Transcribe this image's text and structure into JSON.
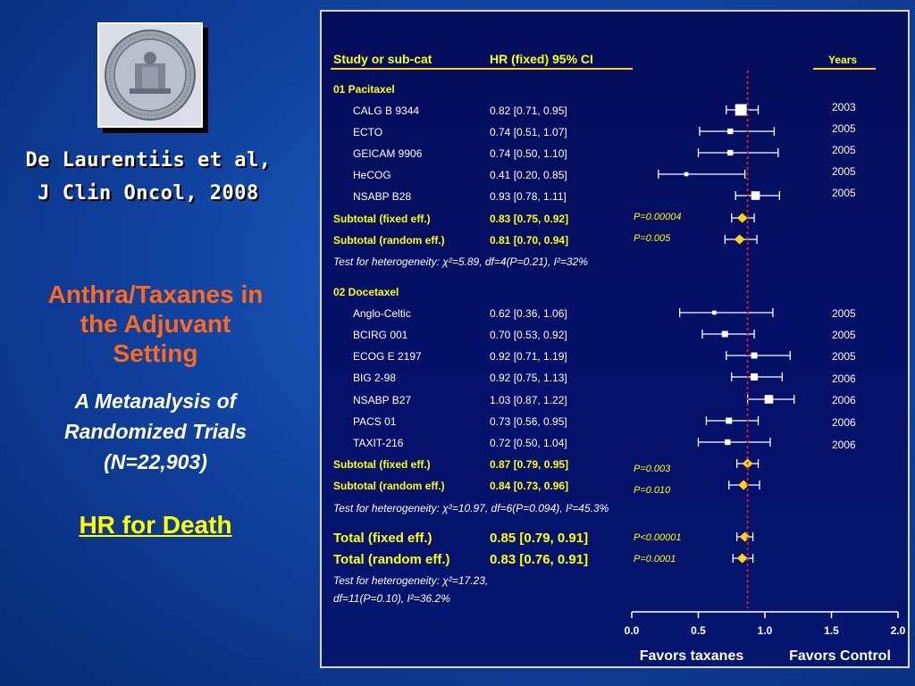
{
  "citation": {
    "line1": "De Laurentiis et al,",
    "line2": "J Clin Oncol, 2008"
  },
  "left_panel": {
    "title_lines": [
      "Anthra/Taxanes in",
      "the Adjuvant",
      "Setting"
    ],
    "subtitle_lines": [
      "A Metanalysis of",
      "Randomized Trials",
      "(N=22,903)"
    ],
    "hr_label": "HR for Death"
  },
  "table": {
    "col_study": "Study or sub-cat",
    "col_hr": "HR (fixed) 95% CI",
    "col_years": "Years"
  },
  "colors": {
    "panel_bg": "#04106a",
    "text_white": "#ffffff",
    "text_yellow": "#ffff00",
    "title_orange": "#ff6a1a",
    "diamond": "#ffd21a",
    "ref_line": "#d42020",
    "pval_yellow": "#ffff00"
  },
  "chart_data": {
    "type": "forest",
    "xlim": [
      0.0,
      2.0
    ],
    "xticks": [
      "0.0",
      "0.5",
      "1.0",
      "1.5",
      "2.0"
    ],
    "reference_line": 0.87,
    "x_label_left": "Favors taxanes",
    "x_label_right": "Favors Control",
    "groups": [
      {
        "name": "01 Pacitaxel",
        "studies": [
          {
            "name": "CALG B 9344",
            "hr_text": "0.82 [0.71,  0.95]",
            "hr": 0.82,
            "lo": 0.71,
            "hi": 0.95,
            "year": "2003",
            "weight": 3
          },
          {
            "name": "ECTO",
            "hr_text": "0.74 [0.51,  1.07]",
            "hr": 0.74,
            "lo": 0.51,
            "hi": 1.07,
            "year": "2005",
            "weight": 1
          },
          {
            "name": "GEICAM 9906",
            "hr_text": "0.74 [0.50,  1.10]",
            "hr": 0.74,
            "lo": 0.5,
            "hi": 1.1,
            "year": "2005",
            "weight": 1
          },
          {
            "name": "HeCOG",
            "hr_text": "0.41 [0.20,  0.85]",
            "hr": 0.41,
            "lo": 0.2,
            "hi": 0.85,
            "year": "2005",
            "weight": 0.5
          },
          {
            "name": "NSABP B28",
            "hr_text": "0.93 [0.78,  1.11]",
            "hr": 0.93,
            "lo": 0.78,
            "hi": 1.11,
            "year": "2005",
            "weight": 2
          }
        ],
        "subtotals": [
          {
            "label": "Subtotal (fixed eff.)",
            "hr_text": "0.83 [0.75,  0.92]",
            "hr": 0.83,
            "lo": 0.75,
            "hi": 0.92,
            "p": "P=0.00004"
          },
          {
            "label": "Subtotal (random eff.)",
            "hr_text": "0.81 [0.70,  0.94]",
            "hr": 0.81,
            "lo": 0.7,
            "hi": 0.94,
            "p": "P=0.005"
          }
        ],
        "heterogeneity": "Test for heterogeneity: χ²=5.89, df=4(P=0.21), I²=32%"
      },
      {
        "name": "02 Docetaxel",
        "studies": [
          {
            "name": "Anglo-Celtic",
            "hr_text": "0.62 [0.36,  1.06]",
            "hr": 0.62,
            "lo": 0.36,
            "hi": 1.06,
            "year": "2005",
            "weight": 0.5
          },
          {
            "name": "BCIRG 001",
            "hr_text": "0.70 [0.53,  0.92]",
            "hr": 0.7,
            "lo": 0.53,
            "hi": 0.92,
            "year": "2005",
            "weight": 1.2
          },
          {
            "name": "ECOG E 2197",
            "hr_text": "0.92 [0.71,  1.19]",
            "hr": 0.92,
            "lo": 0.71,
            "hi": 1.19,
            "year": "2005",
            "weight": 1.2
          },
          {
            "name": "BIG 2-98",
            "hr_text": "0.92 [0.75,  1.13]",
            "hr": 0.92,
            "lo": 0.75,
            "hi": 1.13,
            "year": "2006",
            "weight": 1.5
          },
          {
            "name": "NSABP B27",
            "hr_text": "1.03 [0.87,  1.22]",
            "hr": 1.03,
            "lo": 0.87,
            "hi": 1.22,
            "year": "2006",
            "weight": 2
          },
          {
            "name": "PACS 01",
            "hr_text": "0.73 [0.56,  0.95]",
            "hr": 0.73,
            "lo": 0.56,
            "hi": 0.95,
            "year": "2006",
            "weight": 1.2
          },
          {
            "name": "TAXIT-216",
            "hr_text": "0.72 [0.50,  1.04]",
            "hr": 0.72,
            "lo": 0.5,
            "hi": 1.04,
            "year": "2006",
            "weight": 1
          }
        ],
        "subtotals": [
          {
            "label": "Subtotal (fixed eff.)",
            "hr_text": "0.87 [0.79,  0.95]",
            "hr": 0.87,
            "lo": 0.79,
            "hi": 0.95,
            "p": "P=0.003"
          },
          {
            "label": "Subtotal (random eff.)",
            "hr_text": "0.84 [0.73,  0.96]",
            "hr": 0.84,
            "lo": 0.73,
            "hi": 0.96,
            "p": "P=0.010"
          }
        ],
        "heterogeneity": "Test for heterogeneity: χ²=10.97, df=6(P=0.094), I²=45.3%"
      }
    ],
    "totals": [
      {
        "label": "Total (fixed eff.)",
        "hr_text": "0.85 [0.79,  0.91]",
        "hr": 0.85,
        "lo": 0.79,
        "hi": 0.91,
        "p": "P<0.00001"
      },
      {
        "label": "Total (random eff.)",
        "hr_text": "0.83 [0.76,  0.91]",
        "hr": 0.83,
        "lo": 0.76,
        "hi": 0.91,
        "p": "P=0.0001"
      }
    ],
    "total_heterogeneity_lines": [
      "Test for heterogeneity: χ²=17.23,",
      "df=11(P=0.10), I²=36.2%"
    ]
  }
}
